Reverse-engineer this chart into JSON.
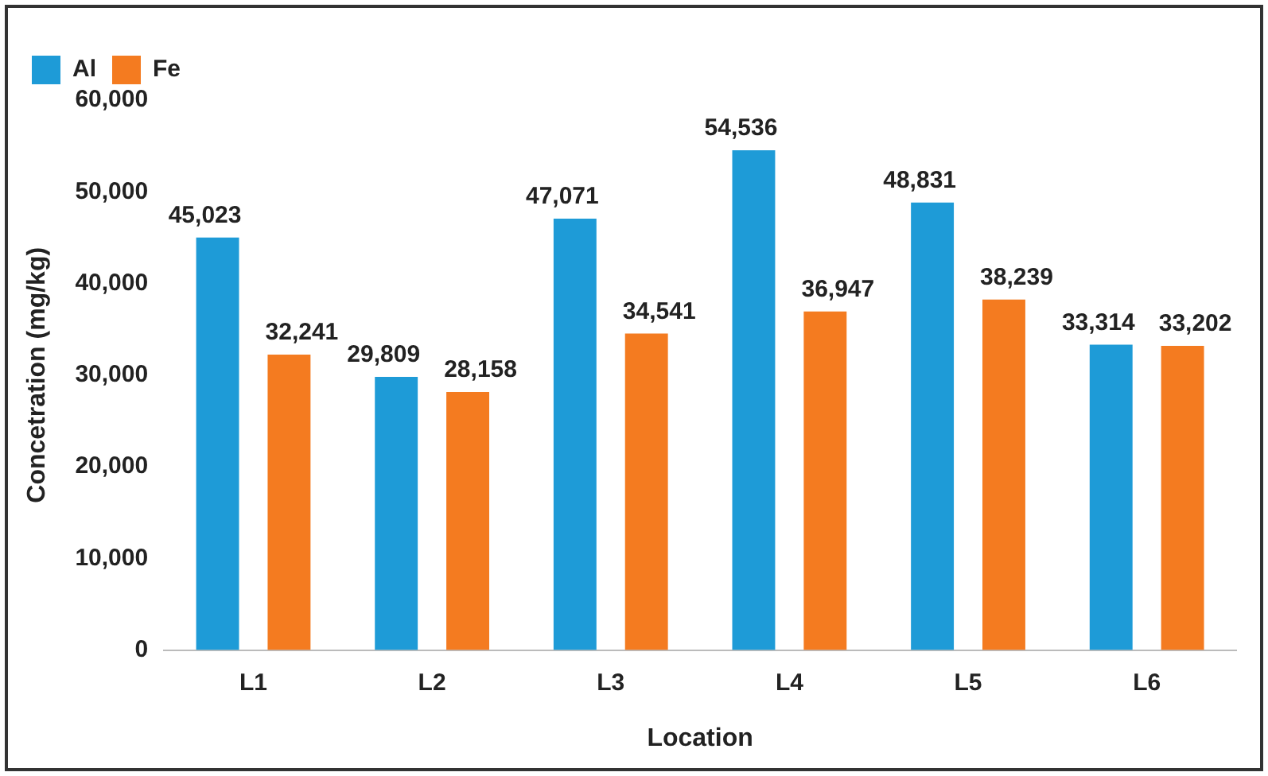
{
  "chart_data": {
    "type": "bar",
    "xlabel": "Location",
    "ylabel": "Concetration (mg/kg)",
    "categories": [
      "L1",
      "L2",
      "L3",
      "L4",
      "L5",
      "L6"
    ],
    "series": [
      {
        "name": "Al",
        "color": "#1e9bd7",
        "values": [
          45023,
          29809,
          47071,
          54536,
          48831,
          33314
        ],
        "value_labels": [
          "45,023",
          "29,809",
          "47,071",
          "54,536",
          "48,831",
          "33,314"
        ]
      },
      {
        "name": "Fe",
        "color": "#f47b20",
        "values": [
          32241,
          28158,
          34541,
          36947,
          38239,
          33202
        ],
        "value_labels": [
          "32,241",
          "28,158",
          "34,541",
          "36,947",
          "38,239",
          "33,202"
        ]
      }
    ],
    "ylim": [
      0,
      60000
    ],
    "yticks": [
      {
        "value": 0,
        "label": "0"
      },
      {
        "value": 10000,
        "label": "10,000"
      },
      {
        "value": 20000,
        "label": "20,000"
      },
      {
        "value": 30000,
        "label": "30,000"
      },
      {
        "value": 40000,
        "label": "40,000"
      },
      {
        "value": 50000,
        "label": "50,000"
      },
      {
        "value": 60000,
        "label": "60,000"
      }
    ],
    "grid": false,
    "legend": "top left"
  }
}
